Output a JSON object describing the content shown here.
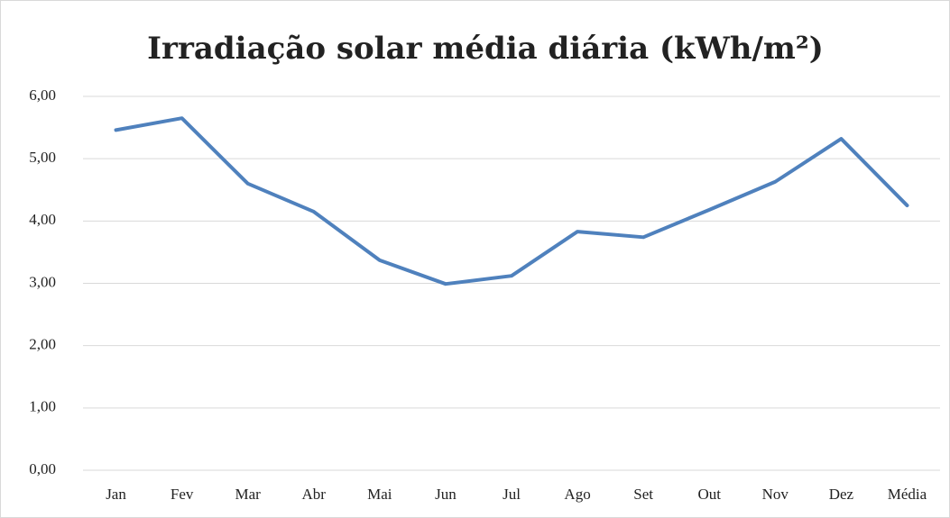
{
  "chart_data": {
    "type": "line",
    "title": "Irradiação solar média diária (kWh/m²)",
    "categories": [
      "Jan",
      "Fev",
      "Mar",
      "Abr",
      "Mai",
      "Jun",
      "Jul",
      "Ago",
      "Set",
      "Out",
      "Nov",
      "Dez",
      "Média"
    ],
    "series": [
      {
        "color": "#4f81bd",
        "values": [
          5.46,
          5.65,
          4.6,
          4.15,
          3.37,
          2.99,
          3.12,
          3.83,
          3.74,
          4.18,
          4.63,
          5.32,
          4.25
        ]
      }
    ],
    "ylim": [
      0,
      6
    ],
    "yticks": [
      {
        "value": 0,
        "label": "0,00"
      },
      {
        "value": 1,
        "label": "1,00"
      },
      {
        "value": 2,
        "label": "2,00"
      },
      {
        "value": 3,
        "label": "3,00"
      },
      {
        "value": 4,
        "label": "4,00"
      },
      {
        "value": 5,
        "label": "5,00"
      },
      {
        "value": 6,
        "label": "6,00"
      }
    ],
    "grid": true
  }
}
